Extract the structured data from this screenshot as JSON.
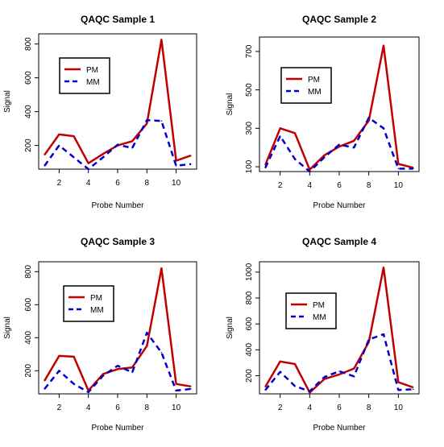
{
  "colors": {
    "pm": "#c00000",
    "mm": "#0000cc",
    "axis": "#000000"
  },
  "chart_data": [
    {
      "type": "line",
      "title": "QAQC Sample 1",
      "xlabel": "Probe Number",
      "ylabel": "Signal",
      "x": [
        1,
        2,
        3,
        4,
        5,
        6,
        7,
        8,
        9,
        10,
        11
      ],
      "xticks": [
        2,
        4,
        6,
        8,
        10
      ],
      "yticks": [
        200,
        400,
        600,
        800
      ],
      "xlim": [
        0.6,
        11.4
      ],
      "ylim": [
        60,
        860
      ],
      "legend": "top-left",
      "series": [
        {
          "name": "PM",
          "values": [
            145,
            265,
            255,
            95,
            150,
            200,
            225,
            330,
            825,
            110,
            140
          ]
        },
        {
          "name": "MM",
          "values": [
            80,
            200,
            130,
            60,
            130,
            205,
            185,
            350,
            345,
            80,
            90
          ]
        }
      ]
    },
    {
      "type": "line",
      "title": "QAQC Sample 2",
      "xlabel": "Probe Number",
      "ylabel": "Signal",
      "x": [
        1,
        2,
        3,
        4,
        5,
        6,
        7,
        8,
        9,
        10,
        11
      ],
      "xticks": [
        2,
        4,
        6,
        8,
        10
      ],
      "yticks": [
        100,
        300,
        500,
        700
      ],
      "xlim": [
        0.6,
        11.4
      ],
      "ylim": [
        75,
        775
      ],
      "legend": "top-left",
      "series": [
        {
          "name": "PM",
          "values": [
            110,
            300,
            275,
            85,
            160,
            205,
            235,
            340,
            730,
            115,
            95
          ]
        },
        {
          "name": "MM",
          "values": [
            95,
            260,
            140,
            75,
            150,
            215,
            200,
            355,
            300,
            90,
            90
          ]
        }
      ]
    },
    {
      "type": "line",
      "title": "QAQC Sample 3",
      "xlabel": "Probe Number",
      "ylabel": "Signal",
      "x": [
        1,
        2,
        3,
        4,
        5,
        6,
        7,
        8,
        9,
        10,
        11
      ],
      "xticks": [
        2,
        4,
        6,
        8,
        10
      ],
      "yticks": [
        200,
        400,
        600,
        800
      ],
      "xlim": [
        0.6,
        11.4
      ],
      "ylim": [
        60,
        860
      ],
      "legend": "top-left",
      "series": [
        {
          "name": "PM",
          "values": [
            140,
            290,
            285,
            80,
            180,
            210,
            220,
            350,
            820,
            120,
            105
          ]
        },
        {
          "name": "MM",
          "values": [
            90,
            200,
            120,
            70,
            170,
            230,
            190,
            430,
            310,
            80,
            90
          ]
        }
      ]
    },
    {
      "type": "line",
      "title": "QAQC Sample 4",
      "xlabel": "Probe Number",
      "ylabel": "Signal",
      "x": [
        1,
        2,
        3,
        4,
        5,
        6,
        7,
        8,
        9,
        10,
        11
      ],
      "xticks": [
        2,
        4,
        6,
        8,
        10
      ],
      "yticks": [
        200,
        400,
        600,
        800,
        1000
      ],
      "xlim": [
        0.6,
        11.4
      ],
      "ylim": [
        60,
        1080
      ],
      "legend": "top-left",
      "series": [
        {
          "name": "PM",
          "values": [
            115,
            310,
            290,
            70,
            175,
            210,
            255,
            460,
            1035,
            150,
            110
          ]
        },
        {
          "name": "MM",
          "values": [
            90,
            230,
            120,
            80,
            190,
            235,
            195,
            480,
            520,
            90,
            95
          ]
        }
      ]
    }
  ]
}
